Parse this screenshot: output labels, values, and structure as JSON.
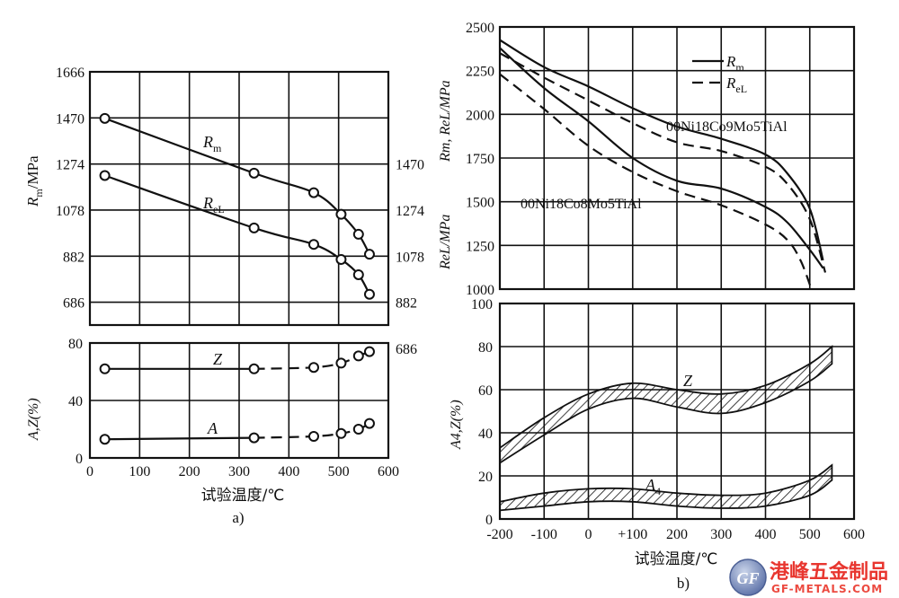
{
  "chart_data": [
    {
      "id": "a",
      "type": "line",
      "panel_label": "a)",
      "xlabel": "试验温度/℃",
      "xlim": [
        0,
        600
      ],
      "x_ticks": [
        "0",
        "100",
        "200",
        "300",
        "400",
        "500",
        "600"
      ],
      "top": {
        "ylabel": "Rm/MPa",
        "ylabel_main": "R",
        "ylabel_sub": "m",
        "ylabel_rest": "/MPa",
        "ylim": [
          589,
          1666
        ],
        "left_ticks": [
          "1666",
          "1470",
          "1274",
          "1078",
          "882",
          "686"
        ],
        "left_tick_values": [
          1666,
          1470,
          1274,
          1078,
          882,
          686
        ],
        "right_ticks": [
          "1470",
          "1274",
          "1078",
          "882",
          "686"
        ],
        "right_tick_values": [
          1470,
          1274,
          1078,
          882,
          686
        ],
        "right_axis_offset": 196,
        "series": [
          {
            "name": "Rm",
            "label_main": "R",
            "label_sub": "m",
            "style": "solid",
            "points": [
              [
                30,
                1468
              ],
              [
                330,
                1235
              ],
              [
                450,
                1152
              ],
              [
                505,
                1060
              ],
              [
                540,
                975
              ],
              [
                562,
                890
              ]
            ]
          },
          {
            "name": "ReL",
            "label_main": "R",
            "label_sub": "eL",
            "style": "solid",
            "points": [
              [
                30,
                1225
              ],
              [
                330,
                1002
              ],
              [
                450,
                932
              ],
              [
                505,
                868
              ],
              [
                540,
                803
              ],
              [
                562,
                720
              ]
            ]
          }
        ]
      },
      "bottom": {
        "ylabel": "A,Z(%)",
        "ylim": [
          0,
          80
        ],
        "y_ticks": [
          "0",
          "40",
          "80"
        ],
        "y_tick_values": [
          0,
          40,
          80
        ],
        "series": [
          {
            "name": "Z",
            "style": "solid-then-dashed",
            "points": [
              [
                30,
                62
              ],
              [
                330,
                62
              ],
              [
                450,
                63
              ],
              [
                505,
                66
              ],
              [
                540,
                71
              ],
              [
                562,
                74
              ]
            ]
          },
          {
            "name": "A",
            "style": "solid-then-dashed",
            "points": [
              [
                30,
                13
              ],
              [
                330,
                14
              ],
              [
                450,
                15
              ],
              [
                505,
                17
              ],
              [
                540,
                20
              ],
              [
                562,
                24
              ]
            ]
          }
        ]
      }
    },
    {
      "id": "b",
      "type": "line",
      "panel_label": "b)",
      "xlabel": "试验温度/℃",
      "xlim": [
        -200,
        600
      ],
      "x_ticks": [
        "-200",
        "-100",
        "0",
        "+100",
        "200",
        "300",
        "400",
        "500",
        "600"
      ],
      "x_tick_values": [
        -200,
        -100,
        0,
        100,
        200,
        300,
        400,
        500,
        600
      ],
      "top": {
        "ylabel_upper": "Rm, ReL/MPa",
        "ylabel_lower": "ReL/MPa",
        "ylim": [
          1000,
          2500
        ],
        "y_ticks": [
          "2500",
          "2250",
          "2000",
          "1750",
          "1500",
          "1250",
          "1000"
        ],
        "y_tick_values": [
          2500,
          2250,
          2000,
          1750,
          1500,
          1250,
          1000
        ],
        "legend": [
          {
            "style": "solid",
            "label_main": "R",
            "label_sub": "m"
          },
          {
            "style": "dashed",
            "label_main": "R",
            "label_sub": "eL"
          }
        ],
        "annotations": [
          "00Ni18Co9Mo5TiAl",
          "00Ni18Co8Mo5TiAl"
        ],
        "series": [
          {
            "steel": "00Ni18Co9Mo5TiAl",
            "property": "Rm",
            "style": "solid",
            "points": [
              [
                -200,
                2425
              ],
              [
                -100,
                2270
              ],
              [
                0,
                2160
              ],
              [
                100,
                2035
              ],
              [
                200,
                1930
              ],
              [
                300,
                1860
              ],
              [
                400,
                1770
              ],
              [
                450,
                1660
              ],
              [
                500,
                1460
              ],
              [
                530,
                1165
              ]
            ]
          },
          {
            "steel": "00Ni18Co9Mo5TiAl",
            "property": "ReL",
            "style": "dashed",
            "points": [
              [
                -200,
                2350
              ],
              [
                -100,
                2210
              ],
              [
                0,
                2080
              ],
              [
                100,
                1950
              ],
              [
                200,
                1840
              ],
              [
                300,
                1790
              ],
              [
                400,
                1700
              ],
              [
                450,
                1600
              ],
              [
                500,
                1400
              ],
              [
                535,
                1095
              ]
            ]
          },
          {
            "steel": "00Ni18Co8Mo5TiAl",
            "property": "Rm",
            "style": "solid",
            "points": [
              [
                -200,
                2380
              ],
              [
                -100,
                2150
              ],
              [
                0,
                1960
              ],
              [
                100,
                1750
              ],
              [
                200,
                1620
              ],
              [
                300,
                1575
              ],
              [
                400,
                1470
              ],
              [
                450,
                1380
              ],
              [
                500,
                1225
              ],
              [
                530,
                1120
              ]
            ]
          },
          {
            "steel": "00Ni18Co8Mo5TiAl",
            "property": "ReL",
            "style": "dashed",
            "points": [
              [
                -200,
                2230
              ],
              [
                -100,
                2030
              ],
              [
                0,
                1820
              ],
              [
                100,
                1670
              ],
              [
                200,
                1560
              ],
              [
                300,
                1480
              ],
              [
                400,
                1370
              ],
              [
                450,
                1280
              ],
              [
                480,
                1160
              ],
              [
                505,
                990
              ]
            ]
          }
        ]
      },
      "bottom": {
        "ylabel": "A4,Z(%)",
        "ylim": [
          0,
          100
        ],
        "y_ticks": [
          "0",
          "20",
          "40",
          "60",
          "80",
          "100"
        ],
        "y_tick_values": [
          0,
          20,
          40,
          60,
          80,
          100
        ],
        "bands": [
          {
            "name": "Z",
            "upper": [
              [
                -200,
                33
              ],
              [
                -100,
                47
              ],
              [
                0,
                58
              ],
              [
                100,
                63
              ],
              [
                200,
                60
              ],
              [
                300,
                58
              ],
              [
                400,
                62
              ],
              [
                500,
                72
              ],
              [
                550,
                80
              ]
            ],
            "lower": [
              [
                -200,
                26
              ],
              [
                -100,
                39
              ],
              [
                0,
                51
              ],
              [
                100,
                56
              ],
              [
                200,
                52
              ],
              [
                300,
                49
              ],
              [
                400,
                54
              ],
              [
                500,
                64
              ],
              [
                550,
                72
              ]
            ]
          },
          {
            "name": "A4",
            "label_main": "A",
            "label_sub": "4",
            "upper": [
              [
                -200,
                8
              ],
              [
                -100,
                12
              ],
              [
                0,
                14
              ],
              [
                100,
                14
              ],
              [
                200,
                12
              ],
              [
                300,
                11
              ],
              [
                400,
                12
              ],
              [
                500,
                18
              ],
              [
                550,
                25
              ]
            ],
            "lower": [
              [
                -200,
                4
              ],
              [
                -100,
                6
              ],
              [
                0,
                8
              ],
              [
                100,
                8
              ],
              [
                200,
                6
              ],
              [
                300,
                5
              ],
              [
                400,
                6
              ],
              [
                500,
                11
              ],
              [
                550,
                18
              ]
            ]
          }
        ]
      }
    }
  ],
  "watermark": {
    "cn": "港峰五金制品",
    "en": "GF-METALS.COM",
    "logo": "GF"
  }
}
